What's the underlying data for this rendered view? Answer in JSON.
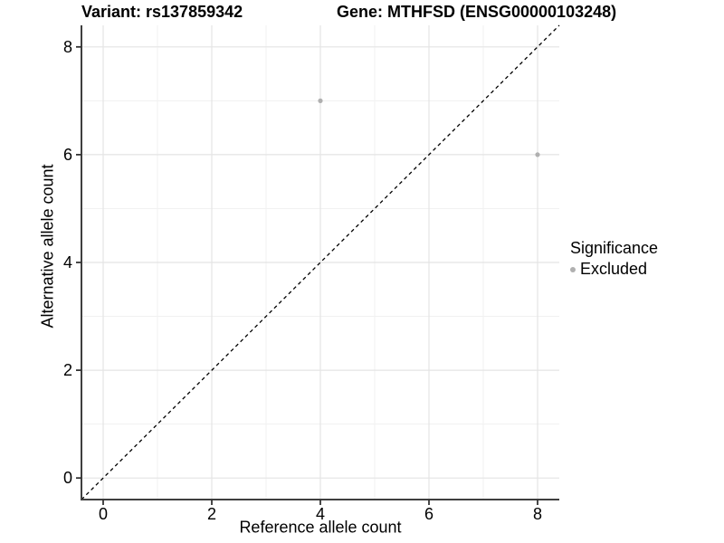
{
  "titles": {
    "variant": "Variant: rs137859342",
    "gene": "Gene: MTHFSD (ENSG00000103248)"
  },
  "chart_data": {
    "type": "scatter",
    "title_left": "Variant: rs137859342",
    "title_right": "Gene: MTHFSD (ENSG00000103248)",
    "xlabel": "Reference allele count",
    "ylabel": "Alternative allele count",
    "xlim": [
      -0.4,
      8.4
    ],
    "ylim": [
      -0.4,
      8.4
    ],
    "x_major_ticks": [
      0,
      2,
      4,
      6,
      8
    ],
    "y_major_ticks": [
      0,
      2,
      4,
      6,
      8
    ],
    "x_minor_ticks": [
      1,
      3,
      5,
      7
    ],
    "y_minor_ticks": [
      1,
      3,
      5,
      7
    ],
    "grid": true,
    "series": [
      {
        "name": "Excluded",
        "color": "#b0b0b0",
        "points": [
          {
            "x": 4,
            "y": 7
          },
          {
            "x": 8,
            "y": 6
          }
        ]
      }
    ],
    "abline": {
      "slope": 1,
      "intercept": 0,
      "style": "dashed",
      "color": "#000000"
    },
    "legend": {
      "title": "Significance",
      "position": "right",
      "entries": [
        {
          "label": "Excluded",
          "color": "#b0b0b0"
        }
      ]
    },
    "colors": {
      "grid_major": "#e4e4e4",
      "grid_minor": "#f1f1f1",
      "axis_line": "#3f3f3f",
      "tick_mark": "#333333",
      "tick_label": "#000000"
    }
  }
}
